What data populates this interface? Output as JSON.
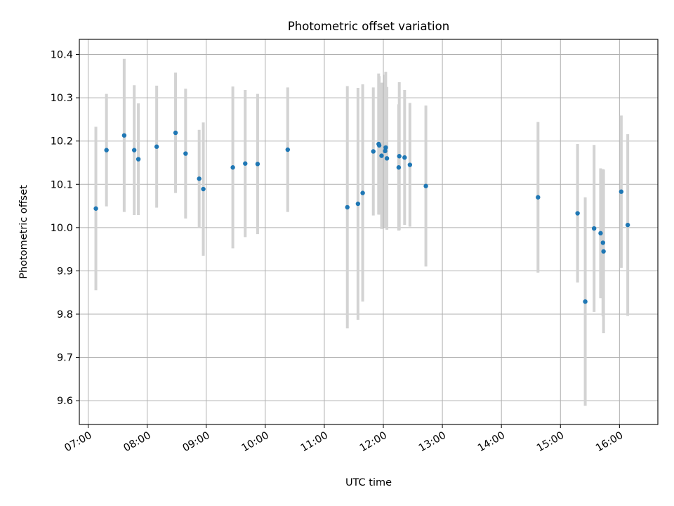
{
  "chart_data": {
    "type": "scatter",
    "title": "Photometric offset variation",
    "xlabel": "UTC time",
    "ylabel": "Photometric offset",
    "x_unit": "hours",
    "xlim": [
      6.85,
      16.65
    ],
    "ylim": [
      9.545,
      10.435
    ],
    "x_ticks": [
      7,
      8,
      9,
      10,
      11,
      12,
      13,
      14,
      15,
      16
    ],
    "x_tick_labels": [
      "07:00",
      "08:00",
      "09:00",
      "10:00",
      "11:00",
      "12:00",
      "13:00",
      "14:00",
      "15:00",
      "16:00"
    ],
    "y_ticks": [
      9.6,
      9.7,
      9.8,
      9.9,
      10.0,
      10.1,
      10.2,
      10.3,
      10.4
    ],
    "y_tick_labels": [
      "9.6",
      "9.7",
      "9.8",
      "9.9",
      "10.0",
      "10.1",
      "10.2",
      "10.3",
      "10.4"
    ],
    "grid": true,
    "colors": {
      "point": "#1f77b4",
      "errorbar": "#d3d3d3",
      "grid": "#b0b0b0"
    },
    "points": [
      {
        "x": 7.13,
        "y": 10.044,
        "err": 0.189
      },
      {
        "x": 7.31,
        "y": 10.179,
        "err": 0.13
      },
      {
        "x": 7.61,
        "y": 10.213,
        "err": 0.177
      },
      {
        "x": 7.78,
        "y": 10.179,
        "err": 0.15
      },
      {
        "x": 7.85,
        "y": 10.158,
        "err": 0.129
      },
      {
        "x": 8.16,
        "y": 10.187,
        "err": 0.141
      },
      {
        "x": 8.48,
        "y": 10.219,
        "err": 0.139
      },
      {
        "x": 8.65,
        "y": 10.171,
        "err": 0.15
      },
      {
        "x": 8.88,
        "y": 10.113,
        "err": 0.113
      },
      {
        "x": 8.95,
        "y": 10.089,
        "err": 0.154
      },
      {
        "x": 9.45,
        "y": 10.139,
        "err": 0.187
      },
      {
        "x": 9.66,
        "y": 10.148,
        "err": 0.17
      },
      {
        "x": 9.87,
        "y": 10.147,
        "err": 0.162
      },
      {
        "x": 10.38,
        "y": 10.18,
        "err": 0.144
      },
      {
        "x": 11.39,
        "y": 10.047,
        "err": 0.28
      },
      {
        "x": 11.57,
        "y": 10.055,
        "err": 0.268
      },
      {
        "x": 11.65,
        "y": 10.08,
        "err": 0.251
      },
      {
        "x": 11.83,
        "y": 10.176,
        "err": 0.148
      },
      {
        "x": 11.92,
        "y": 10.193,
        "err": 0.163
      },
      {
        "x": 11.93,
        "y": 10.19,
        "err": 0.16
      },
      {
        "x": 11.97,
        "y": 10.166,
        "err": 0.169
      },
      {
        "x": 12.03,
        "y": 10.177,
        "err": 0.176
      },
      {
        "x": 12.04,
        "y": 10.185,
        "err": 0.175
      },
      {
        "x": 12.06,
        "y": 10.16,
        "err": 0.165
      },
      {
        "x": 12.26,
        "y": 10.139,
        "err": 0.146
      },
      {
        "x": 12.27,
        "y": 10.165,
        "err": 0.171
      },
      {
        "x": 12.36,
        "y": 10.162,
        "err": 0.156
      },
      {
        "x": 12.45,
        "y": 10.145,
        "err": 0.143
      },
      {
        "x": 12.72,
        "y": 10.096,
        "err": 0.186
      },
      {
        "x": 14.62,
        "y": 10.07,
        "err": 0.174
      },
      {
        "x": 15.29,
        "y": 10.033,
        "err": 0.16
      },
      {
        "x": 15.42,
        "y": 9.829,
        "err": 0.241
      },
      {
        "x": 15.57,
        "y": 9.998,
        "err": 0.193
      },
      {
        "x": 15.68,
        "y": 9.987,
        "err": 0.15
      },
      {
        "x": 15.72,
        "y": 9.965,
        "err": 0.17
      },
      {
        "x": 15.73,
        "y": 9.945,
        "err": 0.189
      },
      {
        "x": 16.03,
        "y": 10.083,
        "err": 0.176
      },
      {
        "x": 16.14,
        "y": 10.006,
        "err": 0.21
      }
    ]
  }
}
